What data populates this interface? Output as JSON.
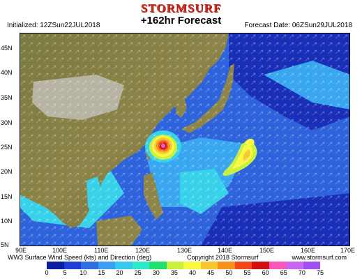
{
  "header": {
    "brand": "STORMSURF",
    "forecast": "+162hr Forecast",
    "initialized": "Initialized: 12ZSun22JUL2018",
    "forecast_date": "Forecast Date: 06ZSun29JUL2018"
  },
  "footer": {
    "product": "WW3 Surface Wind Speed (kts) and Direction (deg)",
    "copyright": "Copyright 2018 Stormsurf",
    "site": "www.stormsurf.com"
  },
  "axes": {
    "lat_labels": [
      "45N",
      "40N",
      "35N",
      "30N",
      "25N",
      "20N",
      "15N",
      "10N",
      "5N"
    ],
    "lon_labels": [
      "90E",
      "100E",
      "110E",
      "120E",
      "130E",
      "140E",
      "150E",
      "160E",
      "170E"
    ]
  },
  "legend": {
    "ticks": [
      "0",
      "5",
      "10",
      "15",
      "20",
      "25",
      "30",
      "35",
      "40",
      "45",
      "50",
      "55",
      "60",
      "65",
      "70",
      "75"
    ],
    "colors": [
      "#0a1ea0",
      "#1f3fd4",
      "#2f6fe0",
      "#3a9ff0",
      "#37c8f0",
      "#2fe8c8",
      "#22e070",
      "#c8f03c",
      "#f8f840",
      "#f8c830",
      "#f89020",
      "#f04818",
      "#d01010",
      "#f858b8",
      "#c868f0",
      "#a050f0"
    ]
  },
  "map_colors": {
    "land": "#8c8448",
    "land_high": "#b8b4a4",
    "ocean_deep": "#1a2fb8",
    "ocean_mid": "#2e63dc",
    "ocean_light": "#39a6f0",
    "ocean_cyan": "#37d2ea"
  }
}
